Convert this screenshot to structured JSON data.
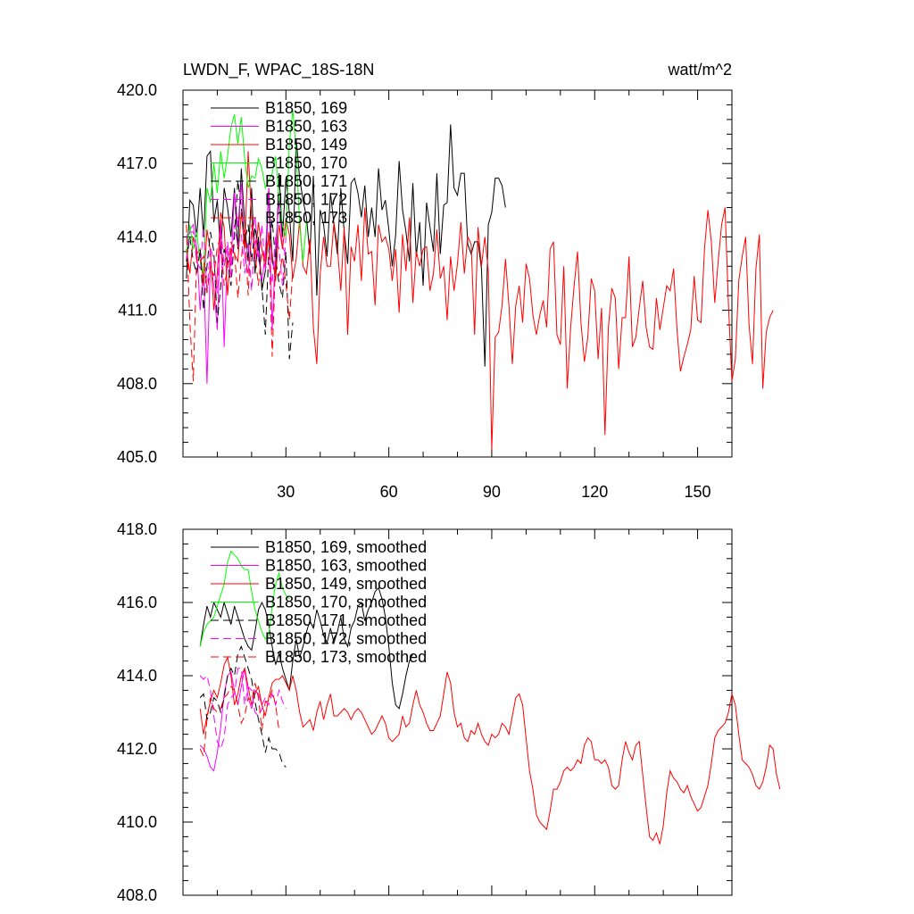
{
  "chart_data": [
    {
      "type": "line",
      "title_left": "LWDN_F, WPAC_18S-18N",
      "title_right": "watt/m^2",
      "xlim": [
        0,
        160
      ],
      "ylim": [
        405,
        420
      ],
      "x_ticks": [
        30,
        60,
        90,
        120,
        150
      ],
      "x_tick_labels": [
        "30",
        "60",
        "90",
        "120",
        "150"
      ],
      "y_ticks": [
        405,
        408,
        411,
        414,
        417,
        420
      ],
      "y_tick_labels": [
        "405.0",
        "408.0",
        "411.0",
        "414.0",
        "417.0",
        "420.0"
      ],
      "legend_position": "top-left",
      "series": [
        {
          "name": "B1850, 169",
          "color": "#000000",
          "dash": "solid",
          "x_start": 1,
          "values": [
            412.3,
            415.5,
            415.3,
            414.0,
            416.0,
            414.0,
            417.3,
            417.5,
            414.6,
            415.5,
            413.3,
            416.0,
            415.2,
            414.0,
            416.0,
            413.5,
            416.8,
            414.5,
            413.0,
            416.0,
            412.5,
            414.0,
            411.8,
            412.6,
            416.0,
            413.0,
            412.5,
            416.6,
            414.0,
            416.4,
            415.0,
            413.0,
            418.0,
            416.4,
            415.5,
            414.8,
            413.3,
            416.5,
            411.6,
            415.1,
            414.5,
            413.2,
            415.8,
            414.5,
            413.3,
            416.0,
            414.2,
            412.9,
            416.2,
            416.4,
            415.8,
            414.8,
            416.1,
            414.0,
            415.2,
            414.0,
            416.8,
            415.1,
            415.5,
            414.3,
            412.8,
            414.1,
            417.1,
            415.1,
            414.2,
            413.0,
            416.2,
            413.2,
            414.6,
            412.0,
            415.4,
            414.4,
            413.4,
            416.6,
            413.3,
            415.3,
            415.4,
            418.6,
            416.0,
            415.7,
            416.6,
            416.6,
            413.7,
            413.3,
            413.8,
            413.8,
            412.7,
            408.7,
            414.5,
            415.0,
            416.4,
            416.4,
            416.1,
            415.2
          ]
        },
        {
          "name": "B1850, 163",
          "color": "#ff00ff",
          "dash": "solid",
          "x_start": 1,
          "values": [
            414.0,
            414.3,
            414.5,
            413.6,
            411.0,
            412.8,
            408.0,
            413.0,
            412.0,
            410.2,
            414.7,
            409.5,
            413.5,
            412.8,
            415.8,
            414.4,
            416.2,
            413.2,
            412.5,
            414.0,
            414.8,
            413.2,
            412.2,
            413.3,
            416.0,
            410.2,
            413.6,
            415.5,
            413.6,
            413.3
          ]
        },
        {
          "name": "B1850, 149",
          "color": "#ff0000",
          "dash": "solid",
          "x_start": 1,
          "values": [
            413.5,
            412.5,
            414.0,
            413.3,
            413.5,
            412.0,
            414.3,
            413.4,
            411.0,
            412.5,
            415.0,
            414.4,
            411.6,
            413.5,
            413.3,
            413.0,
            415.0,
            413.5,
            417.5,
            414.8,
            413.1,
            414.6,
            413.5,
            412.7,
            414.1,
            413.3,
            412.2,
            414.5,
            413.5,
            414.7,
            414.1,
            412.3,
            413.1,
            414.7,
            412.8,
            412.5,
            413.9,
            410.3,
            408.8,
            412.5,
            414.0,
            412.8,
            412.8,
            414.6,
            413.6,
            411.8,
            414.4,
            410.0,
            413.6,
            413.0,
            414.5,
            412.2,
            415.2,
            413.3,
            413.4,
            411.2,
            414.5,
            413.8,
            414.0,
            413.5,
            412.2,
            413.5,
            410.9,
            414.1,
            412.6,
            414.8,
            411.3,
            413.4,
            412.8,
            413.5,
            413.6,
            411.8,
            412.5,
            414.3,
            412.3,
            412.8,
            410.6,
            413.2,
            411.8,
            412.9,
            414.6,
            412.5,
            414.0,
            413.7,
            410.0,
            414.4,
            412.8,
            414.0,
            412.6,
            405.3,
            409.9,
            410.1,
            411.2,
            413.1,
            411.2,
            408.8,
            411.2,
            412.0,
            410.5,
            412.9,
            412.3,
            410.8,
            410.0,
            410.8,
            411.4,
            410.3,
            413.5,
            413.8,
            410.0,
            409.6,
            412.8,
            407.8,
            410.3,
            412.0,
            413.4,
            410.5,
            408.9,
            409.9,
            412.3,
            411.8,
            409.0,
            411.1,
            405.9,
            410.3,
            411.9,
            411.5,
            408.6,
            410.7,
            410.7,
            413.2,
            409.5,
            409.9,
            411.1,
            412.2,
            410.3,
            409.5,
            409.4,
            411.5,
            410.2,
            411.1,
            412.0,
            411.8,
            412.7,
            410.2,
            408.5,
            409.1,
            409.6,
            410.2,
            412.4,
            410.6,
            410.5,
            413.5,
            415.1,
            413.8,
            411.3,
            413.0,
            414.5,
            415.2,
            411.2,
            408.1,
            409.0,
            412.2,
            413.2,
            414.0,
            410.4,
            408.8,
            412.7,
            414.1,
            407.8,
            410.1,
            410.7,
            411.0
          ]
        },
        {
          "name": "B1850, 170",
          "color": "#00ff00",
          "dash": "solid",
          "x_start": 1,
          "values": [
            413.3,
            414.5,
            413.5,
            414.2,
            413.0,
            412.5,
            416.0,
            415.4,
            417.0,
            415.8,
            417.5,
            416.4,
            417.3,
            418.5,
            419.0,
            417.8,
            418.9,
            417.2,
            416.0,
            416.5,
            416.4,
            417.2,
            416.8,
            416.0,
            416.3,
            416.6,
            417.3,
            415.6,
            414.5,
            414.0,
            417.8,
            419.2,
            417.5,
            414.5,
            413.0,
            414.6
          ]
        },
        {
          "name": "B1850, 171",
          "color": "#000000",
          "dash": "dashed",
          "x_start": 1,
          "values": [
            413.0,
            414.0,
            413.0,
            412.5,
            413.5,
            411.0,
            412.8,
            414.2,
            413.4,
            410.5,
            412.0,
            413.5,
            413.0,
            412.0,
            414.0,
            416.3,
            415.2,
            413.8,
            414.5,
            413.0,
            414.4,
            413.5,
            412.0,
            410.0,
            413.4,
            414.7,
            413.0,
            412.1,
            411.5,
            413.4,
            409.0,
            410.5
          ]
        },
        {
          "name": "B1850, 172",
          "color": "#ff00ff",
          "dash": "dashed",
          "x_start": 1,
          "values": [
            413.1,
            414.2,
            414.2,
            413.0,
            412.7,
            414.4,
            411.7,
            413.6,
            413.0,
            411.7,
            414.4,
            412.8,
            413.8,
            412.3,
            414.5,
            413.6,
            414.1,
            412.5,
            413.8,
            411.8,
            414.0,
            413.0,
            414.5,
            412.7,
            413.0,
            412.1,
            414.0,
            413.5,
            412.0,
            414.0
          ]
        },
        {
          "name": "B1850, 173",
          "color": "#ff0000",
          "dash": "dashed",
          "x_start": 1,
          "values": [
            414.5,
            410.5,
            408.1,
            413.2,
            413.0,
            413.2,
            411.7,
            412.8,
            412.4,
            413.6,
            414.0,
            412.0,
            412.7,
            413.8,
            413.4,
            411.5,
            413.1,
            414.3,
            411.6,
            414.5,
            413.3,
            412.0,
            413.5,
            413.0,
            414.2,
            409.1,
            413.0,
            412.4,
            413.2,
            412.1,
            410.6,
            412.6
          ]
        }
      ]
    },
    {
      "type": "line",
      "xlim": [
        0,
        160
      ],
      "ylim": [
        408,
        418
      ],
      "x_ticks": [
        30,
        60,
        90,
        120,
        150
      ],
      "x_tick_labels": [],
      "y_ticks": [
        408,
        410,
        412,
        414,
        416,
        418
      ],
      "y_tick_labels": [
        "408.0",
        "410.0",
        "412.0",
        "414.0",
        "416.0",
        "418.0"
      ],
      "legend_position": "top-left",
      "series": [
        {
          "name": "B1850, 169, smoothed",
          "color": "#000000",
          "dash": "solid",
          "x_start": 5,
          "values": [
            414.8,
            415.4,
            415.9,
            415.6,
            416.0,
            415.8,
            415.6,
            416.0,
            415.7,
            415.4,
            415.9,
            415.6,
            415.3,
            415.0,
            414.8,
            414.7,
            415.2,
            415.8,
            416.0,
            415.8,
            415.4,
            414.8,
            414.3,
            414.6,
            414.2,
            413.9,
            413.6,
            414.4,
            415.0,
            414.5,
            414.8,
            415.2,
            415.5,
            415.3,
            415.8,
            415.5,
            415.1,
            414.9,
            415.3,
            414.9,
            415.2,
            415.6,
            415.0,
            414.8,
            415.3,
            415.5,
            415.9,
            416.0,
            415.5,
            415.8,
            416.0,
            416.3,
            416.4,
            416.1,
            415.6,
            414.8,
            413.8,
            413.2,
            413.1,
            413.5,
            414.0,
            414.4,
            414.6
          ]
        },
        {
          "name": "B1850, 163, smoothed",
          "color": "#ff00ff",
          "dash": "solid",
          "x_start": 5,
          "values": [
            412.1,
            412.0,
            411.8,
            411.5,
            411.4,
            411.9,
            412.6,
            413.5,
            414.0,
            414.1,
            413.6,
            413.2,
            413.7,
            414.2,
            413.4,
            413.1,
            413.6,
            413.5,
            413.2,
            413.4
          ]
        },
        {
          "name": "B1850, 149, smoothed",
          "color": "#ff0000",
          "dash": "solid",
          "x_start": 5,
          "values": [
            413.1,
            412.4,
            412.9,
            413.3,
            413.6,
            413.4,
            413.8,
            414.3,
            414.5,
            414.0,
            413.2,
            413.5,
            414.0,
            414.2,
            413.7,
            413.2,
            413.5,
            413.7,
            413.2,
            412.9,
            413.4,
            413.8,
            413.9,
            413.9,
            414.0,
            413.8,
            413.6,
            414.0,
            413.6,
            413.0,
            412.6,
            412.7,
            412.8,
            412.5,
            413.0,
            413.3,
            412.8,
            413.2,
            413.5,
            412.9,
            412.9,
            413.0,
            413.1,
            413.0,
            412.8,
            413.0,
            413.1,
            413.0,
            412.8,
            412.6,
            412.4,
            412.5,
            412.7,
            412.9,
            412.7,
            412.3,
            412.2,
            412.3,
            412.4,
            412.9,
            412.6,
            412.7,
            413.2,
            413.6,
            413.2,
            413.0,
            412.7,
            412.5,
            412.5,
            412.7,
            412.9,
            413.5,
            414.1,
            413.8,
            413.0,
            412.6,
            412.7,
            412.3,
            412.2,
            412.5,
            412.4,
            412.7,
            412.4,
            412.2,
            412.1,
            412.4,
            412.3,
            412.4,
            412.7,
            412.6,
            412.4,
            412.9,
            413.4,
            413.5,
            413.2,
            412.3,
            411.4,
            410.9,
            410.2,
            410.0,
            409.9,
            409.8,
            410.3,
            410.9,
            410.9,
            411.1,
            411.4,
            411.5,
            411.4,
            411.5,
            411.7,
            411.6,
            412.1,
            412.3,
            412.2,
            411.7,
            411.7,
            411.6,
            411.7,
            411.5,
            411.0,
            410.9,
            411.0,
            411.7,
            412.2,
            411.9,
            411.7,
            412.1,
            412.2,
            411.3,
            410.4,
            409.6,
            409.5,
            409.7,
            409.4,
            409.9,
            410.8,
            411.4,
            411.2,
            411.1,
            410.9,
            410.8,
            411.0,
            410.7,
            410.5,
            410.3,
            410.4,
            410.7,
            411.0,
            411.6,
            412.3,
            412.5,
            412.6,
            412.7,
            413.0,
            413.5,
            413.2,
            412.4,
            411.7,
            411.6,
            411.5,
            411.3,
            411.0,
            410.9,
            411.1,
            411.5,
            412.1,
            412.0,
            411.3,
            410.9
          ]
        },
        {
          "name": "B1850, 170, smoothed",
          "color": "#00ff00",
          "dash": "solid",
          "x_start": 5,
          "values": [
            414.8,
            415.2,
            415.4,
            415.5,
            415.6,
            415.9,
            416.2,
            416.5,
            417.1,
            417.4,
            417.3,
            417.2,
            417.0,
            416.9,
            416.9,
            416.3,
            415.8,
            415.5,
            415.2,
            415.0,
            415.1,
            415.9,
            416.5,
            416.8,
            416.4,
            416.2,
            416.1
          ]
        },
        {
          "name": "B1850, 171, smoothed",
          "color": "#000000",
          "dash": "dashed",
          "x_start": 5,
          "values": [
            413.4,
            413.5,
            412.8,
            413.0,
            413.4,
            413.3,
            413.0,
            413.4,
            414.0,
            414.2,
            414.0,
            414.6,
            414.8,
            414.5,
            414.2,
            413.9,
            413.3,
            412.8,
            412.4,
            411.9,
            412.3,
            412.0,
            412.0,
            411.9,
            411.6,
            411.5
          ]
        },
        {
          "name": "B1850, 172, smoothed",
          "color": "#ff00ff",
          "dash": "dashed",
          "x_start": 5,
          "values": [
            414.0,
            413.9,
            414.0,
            413.6,
            412.9,
            412.2,
            412.0,
            412.3,
            413.2,
            413.4,
            413.5,
            414.2,
            414.2,
            413.2,
            413.7,
            413.6,
            413.0,
            412.9,
            413.1,
            413.3,
            413.2,
            413.5,
            413.2,
            413.6,
            413.3,
            413.1
          ]
        },
        {
          "name": "B1850, 173, smoothed",
          "color": "#ff0000",
          "dash": "dashed",
          "x_start": 5,
          "values": [
            412.0,
            411.8,
            412.8,
            413.4,
            413.1,
            413.0,
            413.1,
            413.4,
            413.5,
            413.7,
            413.6,
            413.2,
            412.7,
            412.9,
            413.4,
            413.3,
            413.8,
            413.4,
            412.5,
            413.3,
            413.3,
            413.6,
            413.2,
            412.5
          ]
        }
      ]
    }
  ]
}
